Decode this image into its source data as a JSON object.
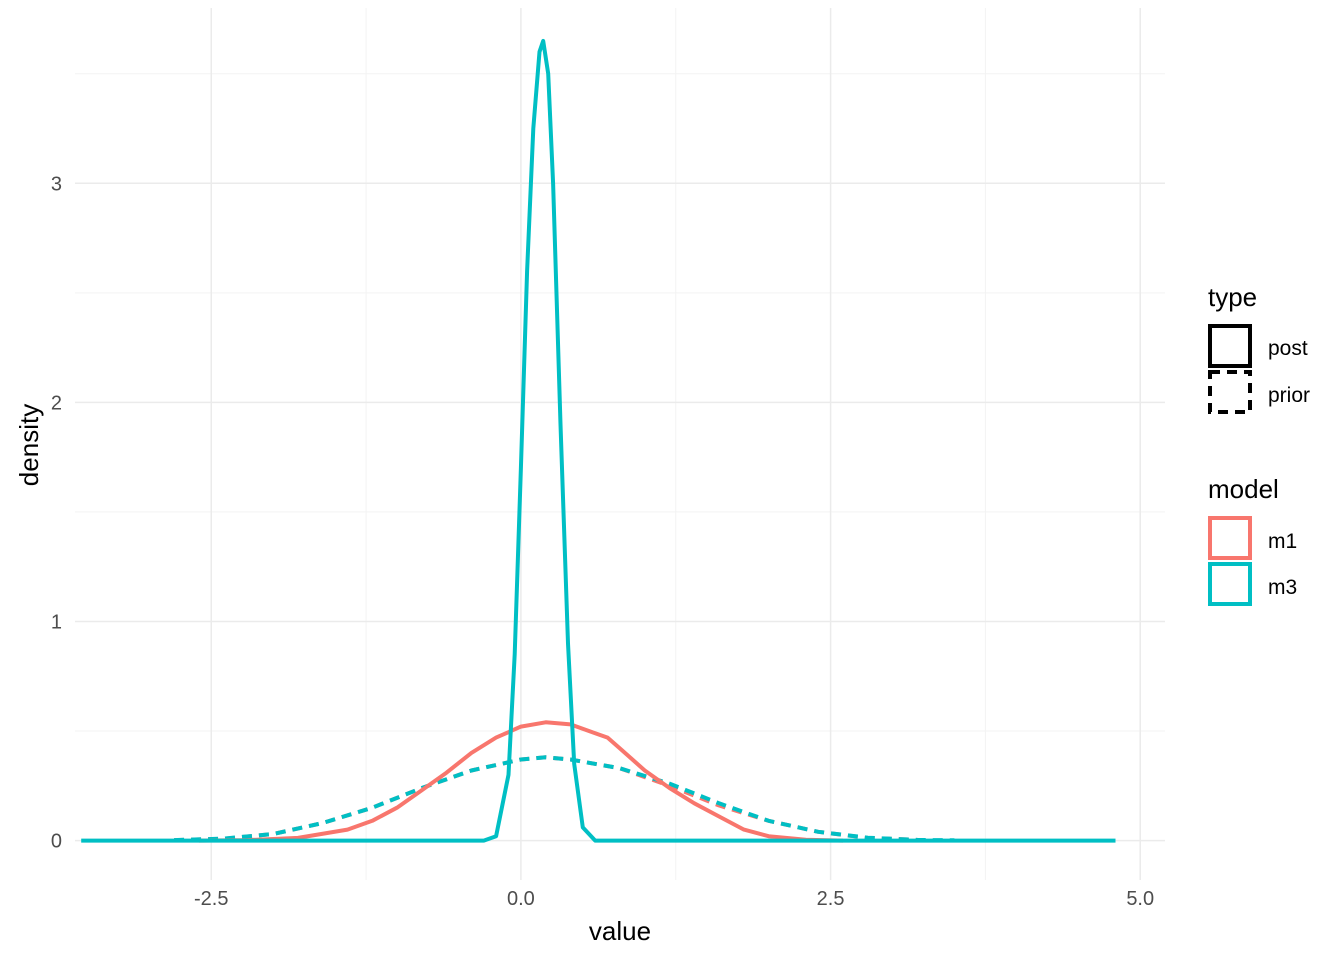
{
  "chart_data": {
    "type": "line",
    "title": "",
    "xlabel": "value",
    "ylabel": "density",
    "xlim": [
      -3.6,
      5.2
    ],
    "ylim": [
      -0.18,
      3.8
    ],
    "x_ticks": [
      -2.5,
      0.0,
      2.5,
      5.0
    ],
    "x_tick_labels": [
      "-2.5",
      "0.0",
      "2.5",
      "5.0"
    ],
    "y_ticks": [
      0,
      1,
      2,
      3
    ],
    "y_tick_labels": [
      "0",
      "1",
      "2",
      "3"
    ],
    "grid": true,
    "legend_position": "right",
    "legends": [
      {
        "title": "type",
        "entries": [
          {
            "label": "post",
            "linetype": "solid"
          },
          {
            "label": "prior",
            "linetype": "dashed"
          }
        ]
      },
      {
        "title": "model",
        "entries": [
          {
            "label": "m1",
            "color": "#F8766D"
          },
          {
            "label": "m3",
            "color": "#00BFC4"
          }
        ]
      }
    ],
    "series": [
      {
        "model": "m1",
        "type": "prior",
        "color": "#F8766D",
        "linetype": "dashed",
        "x": [
          -2.8,
          -2.4,
          -2.0,
          -1.6,
          -1.2,
          -0.8,
          -0.4,
          0.0,
          0.2,
          0.4,
          0.8,
          1.2,
          1.6,
          2.0,
          2.4,
          2.8,
          3.2
        ],
        "y": [
          0.002,
          0.008,
          0.03,
          0.08,
          0.15,
          0.24,
          0.32,
          0.37,
          0.38,
          0.37,
          0.33,
          0.25,
          0.16,
          0.09,
          0.04,
          0.012,
          0.003
        ]
      },
      {
        "model": "m3",
        "type": "prior",
        "color": "#00BFC4",
        "linetype": "dashed",
        "x": [
          -2.8,
          -2.4,
          -2.0,
          -1.6,
          -1.2,
          -0.8,
          -0.4,
          0.0,
          0.2,
          0.4,
          0.8,
          1.2,
          1.6,
          2.0,
          2.4,
          2.8,
          3.2,
          3.5
        ],
        "y": [
          0.002,
          0.009,
          0.03,
          0.08,
          0.15,
          0.24,
          0.32,
          0.37,
          0.38,
          0.37,
          0.33,
          0.26,
          0.17,
          0.09,
          0.04,
          0.013,
          0.003,
          0.001
        ]
      },
      {
        "model": "m1",
        "type": "post",
        "color": "#F8766D",
        "linetype": "solid",
        "x": [
          -2.6,
          -2.2,
          -1.8,
          -1.4,
          -1.2,
          -1.0,
          -0.8,
          -0.6,
          -0.4,
          -0.2,
          0.0,
          0.2,
          0.4,
          0.6,
          0.7,
          0.8,
          1.0,
          1.2,
          1.4,
          1.6,
          1.8,
          2.0,
          2.3,
          2.6
        ],
        "y": [
          0.0,
          0.002,
          0.012,
          0.05,
          0.09,
          0.15,
          0.23,
          0.31,
          0.4,
          0.47,
          0.52,
          0.54,
          0.53,
          0.49,
          0.47,
          0.42,
          0.32,
          0.24,
          0.17,
          0.11,
          0.05,
          0.02,
          0.004,
          0.0
        ]
      },
      {
        "model": "m3",
        "type": "post",
        "color": "#00BFC4",
        "linetype": "solid",
        "x": [
          -3.55,
          -0.3,
          -0.2,
          -0.1,
          -0.05,
          0.0,
          0.05,
          0.1,
          0.15,
          0.18,
          0.22,
          0.26,
          0.32,
          0.38,
          0.43,
          0.5,
          0.6,
          4.8
        ],
        "y": [
          0.0,
          0.0,
          0.02,
          0.3,
          0.85,
          1.7,
          2.6,
          3.25,
          3.6,
          3.65,
          3.5,
          3.0,
          1.9,
          0.9,
          0.35,
          0.06,
          0.0,
          0.0
        ]
      }
    ]
  }
}
